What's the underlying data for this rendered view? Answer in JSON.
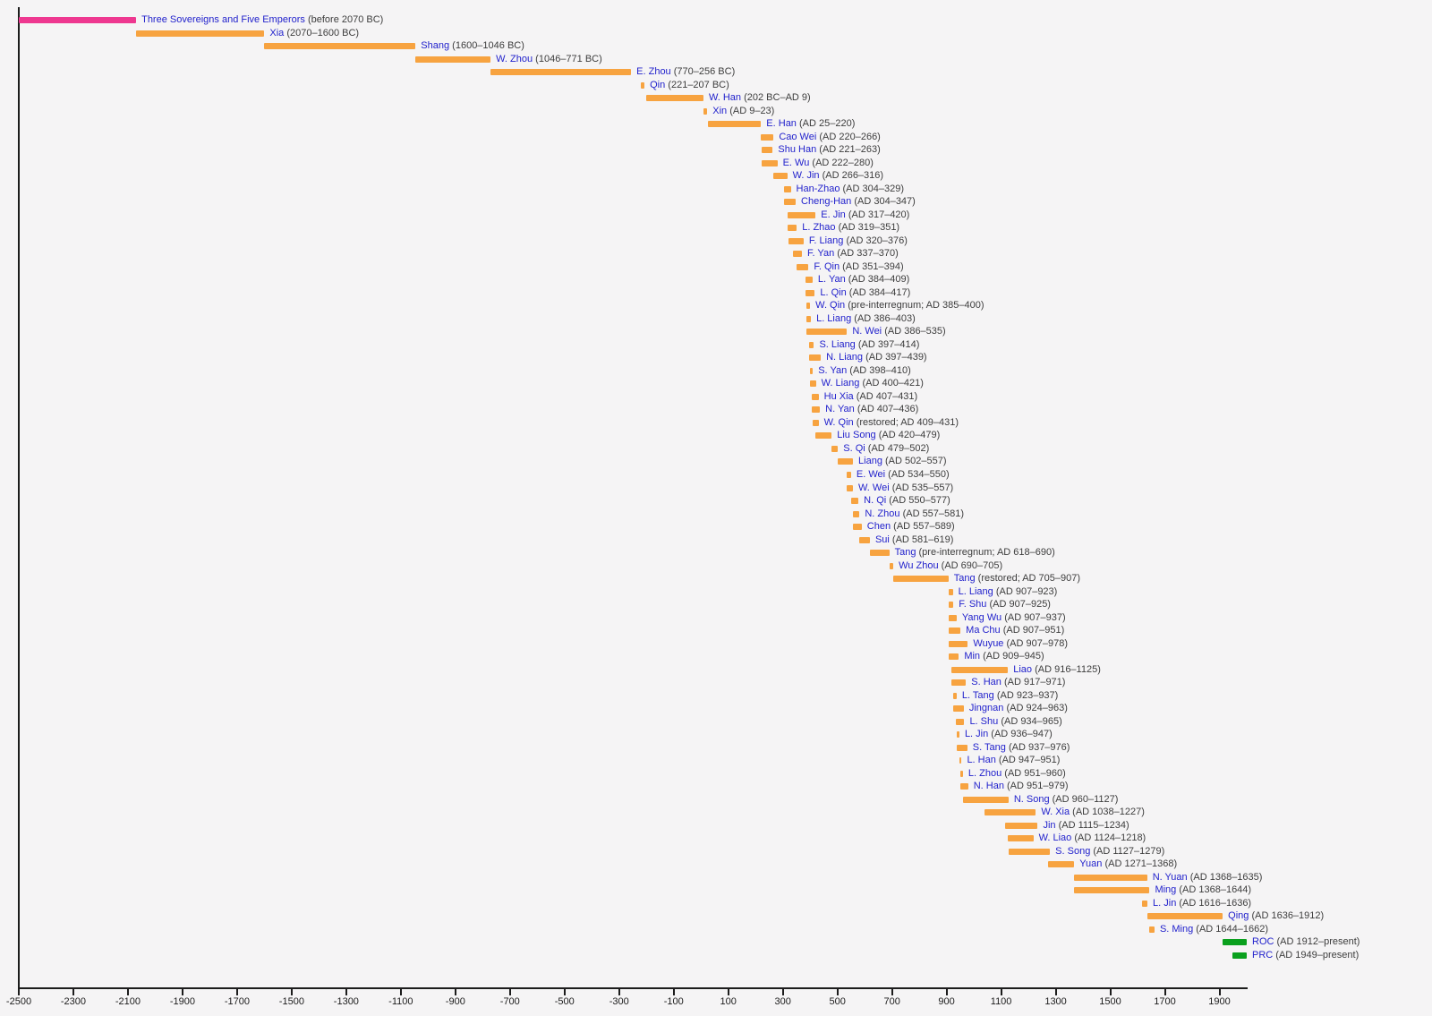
{
  "chart_data": {
    "type": "bar",
    "subtype": "timeline-gantt",
    "description": "Timeline of Chinese dynasties, horizontal bars from -2500 to present",
    "x_axis": {
      "min": -2500,
      "max": 2000,
      "tick_step": 200,
      "tick_values": [
        -2500,
        -2300,
        -2100,
        -1900,
        -1700,
        -1500,
        -1300,
        -1100,
        -900,
        -700,
        -500,
        -300,
        -100,
        100,
        300,
        500,
        700,
        900,
        1100,
        1300,
        1500,
        1700,
        1900
      ],
      "tick_labels": [
        "-2500",
        "-2300",
        "-2100",
        "-1900",
        "-1700",
        "-1500",
        "-1300",
        "-1100",
        "-900",
        "-700",
        "-500",
        "-300",
        "-100",
        "100",
        "300",
        "500",
        "700",
        "900",
        "1100",
        "1300",
        "1500",
        "1700",
        "1900"
      ]
    },
    "colors": {
      "orange": "#f7a340",
      "pink": "#ee3890",
      "green": "#0aa01e",
      "name_text": "#2222cc",
      "date_text": "#3d3d3d",
      "axis": "#1c1c1c",
      "background": "#f5f4f5"
    },
    "dynasties": [
      {
        "name": "Three Sovereigns and Five Emperors",
        "dates": "(before 2070 BC)",
        "start": -2500,
        "end": -2070,
        "color": "pink"
      },
      {
        "name": "Xia",
        "dates": "(2070–1600 BC)",
        "start": -2070,
        "end": -1600
      },
      {
        "name": "Shang",
        "dates": "(1600–1046 BC)",
        "start": -1600,
        "end": -1046
      },
      {
        "name": "W. Zhou",
        "dates": "(1046–771 BC)",
        "start": -1046,
        "end": -771
      },
      {
        "name": "E. Zhou",
        "dates": "(770–256 BC)",
        "start": -770,
        "end": -256
      },
      {
        "name": "Qin",
        "dates": "(221–207 BC)",
        "start": -221,
        "end": -207
      },
      {
        "name": "W. Han",
        "dates": "(202 BC–AD 9)",
        "start": -202,
        "end": 9
      },
      {
        "name": "Xin",
        "dates": "(AD 9–23)",
        "start": 9,
        "end": 23
      },
      {
        "name": "E. Han",
        "dates": "(AD 25–220)",
        "start": 25,
        "end": 220
      },
      {
        "name": "Cao Wei",
        "dates": "(AD 220–266)",
        "start": 220,
        "end": 266
      },
      {
        "name": "Shu Han",
        "dates": "(AD 221–263)",
        "start": 221,
        "end": 263
      },
      {
        "name": "E. Wu",
        "dates": "(AD 222–280)",
        "start": 222,
        "end": 280
      },
      {
        "name": "W. Jin",
        "dates": "(AD 266–316)",
        "start": 266,
        "end": 316
      },
      {
        "name": "Han-Zhao",
        "dates": "(AD 304–329)",
        "start": 304,
        "end": 329
      },
      {
        "name": "Cheng-Han",
        "dates": "(AD 304–347)",
        "start": 304,
        "end": 347
      },
      {
        "name": "E. Jin",
        "dates": "(AD 317–420)",
        "start": 317,
        "end": 420
      },
      {
        "name": "L. Zhao",
        "dates": "(AD 319–351)",
        "start": 319,
        "end": 351
      },
      {
        "name": "F. Liang",
        "dates": "(AD 320–376)",
        "start": 320,
        "end": 376
      },
      {
        "name": "F. Yan",
        "dates": "(AD 337–370)",
        "start": 337,
        "end": 370
      },
      {
        "name": "F. Qin",
        "dates": "(AD 351–394)",
        "start": 351,
        "end": 394
      },
      {
        "name": "L. Yan",
        "dates": "(AD 384–409)",
        "start": 384,
        "end": 409
      },
      {
        "name": "L. Qin",
        "dates": "(AD 384–417)",
        "start": 384,
        "end": 417
      },
      {
        "name": "W. Qin",
        "dates": "(pre-interregnum; AD 385–400)",
        "start": 385,
        "end": 400
      },
      {
        "name": "L. Liang",
        "dates": "(AD 386–403)",
        "start": 386,
        "end": 403
      },
      {
        "name": "N. Wei",
        "dates": "(AD 386–535)",
        "start": 386,
        "end": 535
      },
      {
        "name": "S. Liang",
        "dates": "(AD 397–414)",
        "start": 397,
        "end": 414
      },
      {
        "name": "N. Liang",
        "dates": "(AD 397–439)",
        "start": 397,
        "end": 439
      },
      {
        "name": "S. Yan",
        "dates": "(AD 398–410)",
        "start": 398,
        "end": 410
      },
      {
        "name": "W. Liang",
        "dates": "(AD 400–421)",
        "start": 400,
        "end": 421
      },
      {
        "name": "Hu Xia",
        "dates": "(AD 407–431)",
        "start": 407,
        "end": 431
      },
      {
        "name": "N. Yan",
        "dates": "(AD 407–436)",
        "start": 407,
        "end": 436
      },
      {
        "name": "W. Qin",
        "dates": "(restored; AD 409–431)",
        "start": 409,
        "end": 431
      },
      {
        "name": "Liu Song",
        "dates": "(AD 420–479)",
        "start": 420,
        "end": 479
      },
      {
        "name": "S. Qi",
        "dates": "(AD 479–502)",
        "start": 479,
        "end": 502
      },
      {
        "name": "Liang",
        "dates": "(AD 502–557)",
        "start": 502,
        "end": 557
      },
      {
        "name": "E. Wei",
        "dates": "(AD 534–550)",
        "start": 534,
        "end": 550
      },
      {
        "name": "W. Wei",
        "dates": "(AD 535–557)",
        "start": 535,
        "end": 557
      },
      {
        "name": "N. Qi",
        "dates": "(AD 550–577)",
        "start": 550,
        "end": 577
      },
      {
        "name": "N. Zhou",
        "dates": "(AD 557–581)",
        "start": 557,
        "end": 581
      },
      {
        "name": "Chen",
        "dates": "(AD 557–589)",
        "start": 557,
        "end": 589
      },
      {
        "name": "Sui",
        "dates": "(AD 581–619)",
        "start": 581,
        "end": 619
      },
      {
        "name": "Tang",
        "dates": "(pre-interregnum; AD 618–690)",
        "start": 618,
        "end": 690
      },
      {
        "name": "Wu Zhou",
        "dates": "(AD 690–705)",
        "start": 690,
        "end": 705
      },
      {
        "name": "Tang",
        "dates": "(restored; AD 705–907)",
        "start": 705,
        "end": 907
      },
      {
        "name": "L. Liang",
        "dates": "(AD 907–923)",
        "start": 907,
        "end": 923
      },
      {
        "name": "F. Shu",
        "dates": "(AD 907–925)",
        "start": 907,
        "end": 925
      },
      {
        "name": "Yang Wu",
        "dates": "(AD 907–937)",
        "start": 907,
        "end": 937
      },
      {
        "name": "Ma Chu",
        "dates": "(AD 907–951)",
        "start": 907,
        "end": 951
      },
      {
        "name": "Wuyue",
        "dates": "(AD 907–978)",
        "start": 907,
        "end": 978
      },
      {
        "name": "Min",
        "dates": "(AD 909–945)",
        "start": 909,
        "end": 945
      },
      {
        "name": "Liao",
        "dates": "(AD 916–1125)",
        "start": 916,
        "end": 1125
      },
      {
        "name": "S. Han",
        "dates": "(AD 917–971)",
        "start": 917,
        "end": 971
      },
      {
        "name": "L. Tang",
        "dates": "(AD 923–937)",
        "start": 923,
        "end": 937
      },
      {
        "name": "Jingnan",
        "dates": "(AD 924–963)",
        "start": 924,
        "end": 963
      },
      {
        "name": "L. Shu",
        "dates": "(AD 934–965)",
        "start": 934,
        "end": 965
      },
      {
        "name": "L. Jin",
        "dates": "(AD 936–947)",
        "start": 936,
        "end": 947
      },
      {
        "name": "S. Tang",
        "dates": "(AD 937–976)",
        "start": 937,
        "end": 976
      },
      {
        "name": "L. Han",
        "dates": "(AD 947–951)",
        "start": 947,
        "end": 951
      },
      {
        "name": "L. Zhou",
        "dates": "(AD 951–960)",
        "start": 951,
        "end": 960
      },
      {
        "name": "N. Han",
        "dates": "(AD 951–979)",
        "start": 951,
        "end": 979
      },
      {
        "name": "N. Song",
        "dates": "(AD 960–1127)",
        "start": 960,
        "end": 1127
      },
      {
        "name": "W. Xia",
        "dates": "(AD 1038–1227)",
        "start": 1038,
        "end": 1227
      },
      {
        "name": "Jin",
        "dates": "(AD 1115–1234)",
        "start": 1115,
        "end": 1234
      },
      {
        "name": "W. Liao",
        "dates": "(AD 1124–1218)",
        "start": 1124,
        "end": 1218
      },
      {
        "name": "S. Song",
        "dates": "(AD 1127–1279)",
        "start": 1127,
        "end": 1279
      },
      {
        "name": "Yuan",
        "dates": "(AD 1271–1368)",
        "start": 1271,
        "end": 1368
      },
      {
        "name": "N. Yuan",
        "dates": "(AD 1368–1635)",
        "start": 1368,
        "end": 1635
      },
      {
        "name": "Ming",
        "dates": "(AD 1368–1644)",
        "start": 1368,
        "end": 1644
      },
      {
        "name": "L. Jin",
        "dates": "(AD 1616–1636)",
        "start": 1616,
        "end": 1636
      },
      {
        "name": "Qing",
        "dates": "(AD 1636–1912)",
        "start": 1636,
        "end": 1912
      },
      {
        "name": "S. Ming",
        "dates": "(AD 1644–1662)",
        "start": 1644,
        "end": 1662
      },
      {
        "name": "ROC",
        "dates": "(AD 1912–present)",
        "start": 1912,
        "end": 2000,
        "color": "green"
      },
      {
        "name": "PRC",
        "dates": "(AD 1949–present)",
        "start": 1949,
        "end": 2000,
        "color": "green"
      }
    ]
  }
}
